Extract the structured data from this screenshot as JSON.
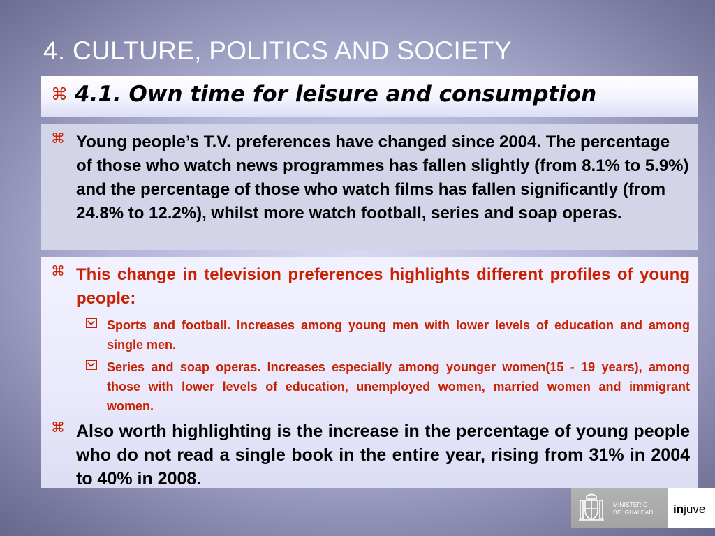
{
  "title": "4. CULTURE, POLITICS AND SOCIETY",
  "subtitle": {
    "bullet": "⌘",
    "text": "4.1. Own time for leisure and consumption"
  },
  "paragraph1": {
    "bullet": "⌘",
    "text": "Young people’s T.V. preferences have changed since 2004.  The percentage of those who watch news programmes has fallen slightly (from 8.1% to 5.9%) and the percentage of those who watch films has fallen significantly (from 24.8% to 12.2%), whilst more watch football, series and soap operas."
  },
  "highlight": {
    "bullet": "⌘",
    "text": "This change in television preferences highlights different profiles of young people:",
    "subitems": [
      "Sports and football. Increases among young men with lower levels of education and among single men.",
      "Series and soap operas. Increases especially among younger women(15 - 19 years), among those with lower levels of education, unemployed women, married women and immigrant women."
    ]
  },
  "paragraph2": {
    "bullet": "⌘",
    "text": "Also worth highlighting is the increase in the percentage of young people who do not read a single book in the entire year, rising from 31% in 2004 to 40% in 2008."
  },
  "logo": {
    "ministry_line1": "MINISTERIO",
    "ministry_line2": "DE IGUALDAD",
    "brand_bold": "in",
    "brand_rest": "juve"
  },
  "colors": {
    "accent_red": "#c82000",
    "title_white": "#ffffff"
  },
  "icons": [
    "command-bullet-icon",
    "checkbox-bullet-icon",
    "coat-of-arms-icon"
  ]
}
